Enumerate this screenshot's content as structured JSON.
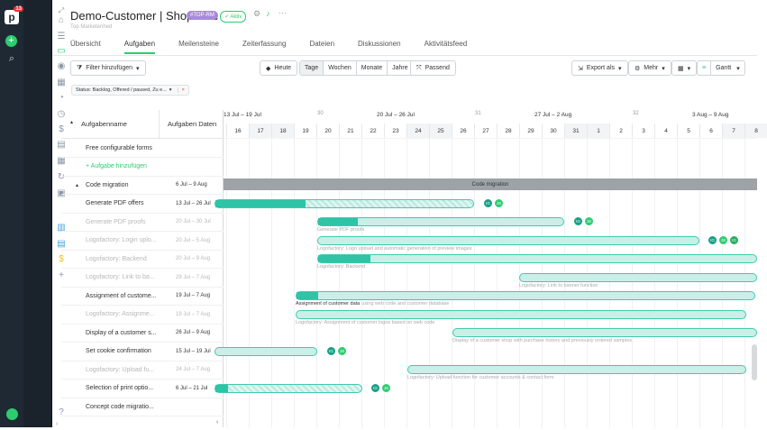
{
  "rail": {
    "badge": "13"
  },
  "header": {
    "title": "Demo-Customer | Shopware",
    "tag": "#TOP-RM",
    "status": "✓ Aktiv",
    "subtitle": "Top Marketenhed",
    "tabs": [
      "Übersicht",
      "Aufgaben",
      "Meilensteine",
      "Zeiterfassung",
      "Dateien",
      "Diskussionen",
      "Aktivitätsfeed"
    ]
  },
  "toolbar": {
    "filter_label": "Filter hinzufügen",
    "today_label": "Heute",
    "scale": [
      "Tage",
      "Wochen",
      "Monate",
      "Jahre"
    ],
    "fit_label": "Passend",
    "export_label": "Export als",
    "more_label": "Mehr",
    "view_label": "Gantt"
  },
  "filter_chip": {
    "label": "Status: Backlog, Offered / paused, Zu e...",
    "close": "×"
  },
  "table": {
    "col_name": "Aufgabenname",
    "col_dates": "Aufgaben Daten",
    "rows": [
      {
        "name": "Free configurable forms",
        "dates": ""
      },
      {
        "name": "+ Aufgabe hinzufügen",
        "dates": ""
      },
      {
        "name": "Code migration",
        "dates": "6 Jul – 9 Aug"
      },
      {
        "name": "Generate PDF offers",
        "dates": "13 Jul – 26 Jul"
      },
      {
        "name": "Generate PDF proofs",
        "dates": "20 Jul – 30 Jul"
      },
      {
        "name": "Logofactory: Login uplo...",
        "dates": "20 Jul – 5 Aug"
      },
      {
        "name": "Logofactory: Backend",
        "dates": "20 Jul – 9 Aug"
      },
      {
        "name": "Logofactory: Link to ba...",
        "dates": "29 Jul – 7 Aug"
      },
      {
        "name": "Assignment of custome...",
        "dates": "19 Jul – 7 Aug"
      },
      {
        "name": "Logofactory: Assignme...",
        "dates": "19 Jul – 7 Aug"
      },
      {
        "name": "Display of a customer s...",
        "dates": "26 Jul – 9 Aug"
      },
      {
        "name": "Set cookie confirmation",
        "dates": "15 Jul – 19 Jul"
      },
      {
        "name": "Logofactory: Upload fu...",
        "dates": "24 Jul – 7 Aug"
      },
      {
        "name": "Selection of print optio...",
        "dates": "6 Jul – 21 Jul"
      },
      {
        "name": "Concept code migratio...",
        "dates": ""
      }
    ]
  },
  "timeline": {
    "weeks": [
      {
        "num": "",
        "range": "13 Jul – 19 Jul"
      },
      {
        "num": "30",
        "range": "20 Jul – 26 Jul"
      },
      {
        "num": "31",
        "range": "27 Jul – 2 Aug"
      },
      {
        "num": "32",
        "range": "3 Aug – 9 Aug"
      }
    ],
    "days": [
      "16",
      "17",
      "18",
      "19",
      "20",
      "21",
      "22",
      "23",
      "24",
      "25",
      "26",
      "27",
      "28",
      "29",
      "30",
      "31",
      "1",
      "2",
      "3",
      "4",
      "5",
      "6",
      "7",
      "8"
    ],
    "summary_label": "Code migration",
    "bar_labels": {
      "b3": "Generate PDF proofs",
      "b4": "Logofactory: Logo upload and automatic generation of preview images",
      "b5": "Logofactory: Backend",
      "b6": "Logofactory: Link to banner function",
      "b7a": "Assignment of customer data",
      "b7b": "using web code and customer database",
      "b8": "Logofactory: Assignment of customer logos based on web code",
      "b9": "Display of a customer shop with purchase history and previously ordered samples",
      "b11": "Logofactory: Upload function for customer accounts & contact form"
    },
    "avatars": {
      "ig": "IG",
      "js": "JS"
    }
  },
  "colors": {
    "accent": "#2ecc71",
    "bar": "#2ec4a6",
    "bar_light": "#c9efe7"
  }
}
